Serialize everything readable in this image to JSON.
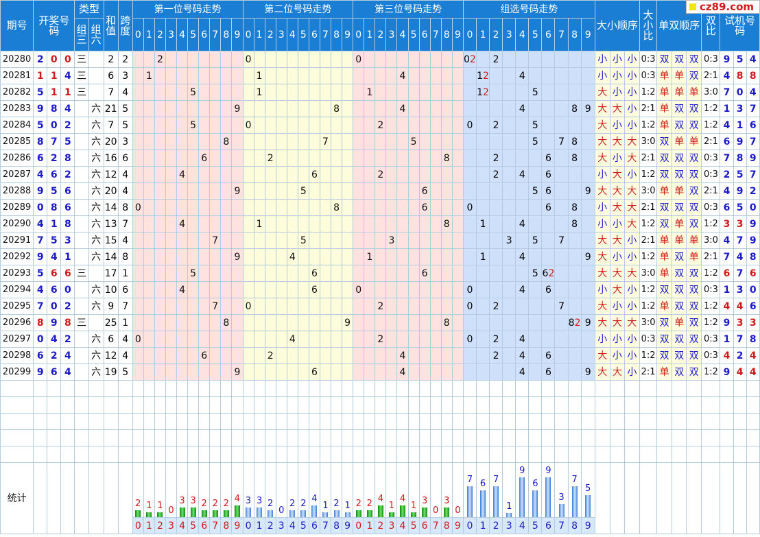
{
  "header": {
    "issue": "期号",
    "number": "开奖号码",
    "type": "类型",
    "type_sub1": "组三",
    "type_sub2": "组六",
    "sum": "和值",
    "span": "跨度",
    "pos1": "第一位号码走势",
    "pos2": "第二位号码走势",
    "pos3": "第三位号码走势",
    "group": "组选号码走势",
    "bigsmall_order": "大小顺序",
    "bigsmall_ratio": "大小比",
    "oddeven_order": "单双顺序",
    "oddeven_ratio": "双比",
    "trial": "试机号码",
    "digits": [
      "0",
      "1",
      "2",
      "3",
      "4",
      "5",
      "6",
      "7",
      "8",
      "9"
    ]
  },
  "logo": {
    "text": "cz89.com",
    "accent": "#f4e60c"
  },
  "colors": {
    "header_bg": "#1a7fd4",
    "pos_zone": "#fde2df",
    "pos2_zone": "#fdfddb",
    "group_zone": "#cfe0fb",
    "red": "#d21919",
    "blue": "#1a1acc",
    "bar_green": "#1ea01e",
    "bar_blue": "#5b9be0"
  },
  "rows": [
    {
      "issue": "20280",
      "num": [
        2,
        0,
        0
      ],
      "type": "三",
      "sum": 2,
      "span": 2,
      "bs": [
        "小",
        "小",
        "小"
      ],
      "bsr": "0:3",
      "oe": [
        "双",
        "双",
        "双"
      ],
      "oer": "0:3",
      "trial": [
        9,
        5,
        4
      ],
      "trial_red": []
    },
    {
      "issue": "20281",
      "num": [
        1,
        1,
        4
      ],
      "type": "三",
      "sum": 6,
      "span": 3,
      "bs": [
        "小",
        "小",
        "小"
      ],
      "bsr": "0:3",
      "oe": [
        "单",
        "单",
        "双"
      ],
      "oer": "2:1",
      "trial": [
        4,
        8,
        8
      ],
      "trial_red": [
        1,
        2
      ]
    },
    {
      "issue": "20282",
      "num": [
        5,
        1,
        1
      ],
      "type": "三",
      "sum": 7,
      "span": 4,
      "bs": [
        "大",
        "小",
        "小"
      ],
      "bsr": "1:2",
      "oe": [
        "单",
        "单",
        "单"
      ],
      "oer": "3:0",
      "trial": [
        7,
        0,
        4
      ],
      "trial_red": []
    },
    {
      "issue": "20283",
      "num": [
        9,
        8,
        4
      ],
      "type": "六",
      "sum": 21,
      "span": 5,
      "bs": [
        "大",
        "大",
        "小"
      ],
      "bsr": "2:1",
      "oe": [
        "单",
        "双",
        "双"
      ],
      "oer": "1:2",
      "trial": [
        1,
        3,
        7
      ],
      "trial_red": []
    },
    {
      "issue": "20284",
      "num": [
        5,
        0,
        2
      ],
      "type": "六",
      "sum": 7,
      "span": 5,
      "bs": [
        "大",
        "小",
        "小"
      ],
      "bsr": "1:2",
      "oe": [
        "单",
        "双",
        "双"
      ],
      "oer": "1:2",
      "trial": [
        4,
        1,
        6
      ],
      "trial_red": []
    },
    {
      "issue": "20285",
      "num": [
        8,
        7,
        5
      ],
      "type": "六",
      "sum": 20,
      "span": 3,
      "bs": [
        "大",
        "大",
        "大"
      ],
      "bsr": "3:0",
      "oe": [
        "双",
        "单",
        "单"
      ],
      "oer": "2:1",
      "trial": [
        6,
        9,
        7
      ],
      "trial_red": []
    },
    {
      "issue": "20286",
      "num": [
        6,
        2,
        8
      ],
      "type": "六",
      "sum": 16,
      "span": 6,
      "bs": [
        "大",
        "小",
        "大"
      ],
      "bsr": "2:1",
      "oe": [
        "双",
        "双",
        "双"
      ],
      "oer": "0:3",
      "trial": [
        7,
        8,
        9
      ],
      "trial_red": []
    },
    {
      "issue": "20287",
      "num": [
        4,
        6,
        2
      ],
      "type": "六",
      "sum": 12,
      "span": 4,
      "bs": [
        "小",
        "大",
        "小"
      ],
      "bsr": "1:2",
      "oe": [
        "双",
        "双",
        "双"
      ],
      "oer": "0:3",
      "trial": [
        2,
        5,
        7
      ],
      "trial_red": []
    },
    {
      "issue": "20288",
      "num": [
        9,
        5,
        6
      ],
      "type": "六",
      "sum": 20,
      "span": 4,
      "bs": [
        "大",
        "大",
        "大"
      ],
      "bsr": "3:0",
      "oe": [
        "单",
        "单",
        "双"
      ],
      "oer": "2:1",
      "trial": [
        4,
        9,
        2
      ],
      "trial_red": []
    },
    {
      "issue": "20289",
      "num": [
        0,
        8,
        6
      ],
      "type": "六",
      "sum": 14,
      "span": 8,
      "bs": [
        "小",
        "大",
        "大"
      ],
      "bsr": "2:1",
      "oe": [
        "双",
        "双",
        "双"
      ],
      "oer": "0:3",
      "trial": [
        6,
        5,
        0
      ],
      "trial_red": []
    },
    {
      "issue": "20290",
      "num": [
        4,
        1,
        8
      ],
      "type": "六",
      "sum": 13,
      "span": 7,
      "bs": [
        "小",
        "小",
        "大"
      ],
      "bsr": "1:2",
      "oe": [
        "双",
        "单",
        "双"
      ],
      "oer": "1:2",
      "trial": [
        3,
        3,
        9
      ],
      "trial_red": [
        0,
        1
      ]
    },
    {
      "issue": "20291",
      "num": [
        7,
        5,
        3
      ],
      "type": "六",
      "sum": 15,
      "span": 4,
      "bs": [
        "大",
        "大",
        "小"
      ],
      "bsr": "2:1",
      "oe": [
        "单",
        "单",
        "单"
      ],
      "oer": "3:0",
      "trial": [
        4,
        7,
        9
      ],
      "trial_red": []
    },
    {
      "issue": "20292",
      "num": [
        9,
        4,
        1
      ],
      "type": "六",
      "sum": 14,
      "span": 8,
      "bs": [
        "大",
        "小",
        "小"
      ],
      "bsr": "1:2",
      "oe": [
        "单",
        "双",
        "单"
      ],
      "oer": "2:1",
      "trial": [
        7,
        4,
        8
      ],
      "trial_red": []
    },
    {
      "issue": "20293",
      "num": [
        5,
        6,
        6
      ],
      "type": "三",
      "sum": 17,
      "span": 1,
      "bs": [
        "大",
        "大",
        "大"
      ],
      "bsr": "3:0",
      "oe": [
        "单",
        "双",
        "双"
      ],
      "oer": "1:2",
      "trial": [
        6,
        7,
        6
      ],
      "trial_red": [
        0,
        2
      ]
    },
    {
      "issue": "20294",
      "num": [
        4,
        6,
        0
      ],
      "type": "六",
      "sum": 10,
      "span": 6,
      "bs": [
        "小",
        "大",
        "小"
      ],
      "bsr": "1:2",
      "oe": [
        "双",
        "双",
        "双"
      ],
      "oer": "0:3",
      "trial": [
        1,
        3,
        0
      ],
      "trial_red": []
    },
    {
      "issue": "20295",
      "num": [
        7,
        0,
        2
      ],
      "type": "六",
      "sum": 9,
      "span": 7,
      "bs": [
        "大",
        "小",
        "小"
      ],
      "bsr": "1:2",
      "oe": [
        "单",
        "双",
        "双"
      ],
      "oer": "1:2",
      "trial": [
        4,
        4,
        6
      ],
      "trial_red": [
        0,
        1
      ]
    },
    {
      "issue": "20296",
      "num": [
        8,
        9,
        8
      ],
      "type": "三",
      "sum": 25,
      "span": 1,
      "bs": [
        "大",
        "大",
        "大"
      ],
      "bsr": "3:0",
      "oe": [
        "双",
        "单",
        "双"
      ],
      "oer": "1:2",
      "trial": [
        9,
        3,
        3
      ],
      "trial_red": [
        1,
        2
      ]
    },
    {
      "issue": "20297",
      "num": [
        0,
        4,
        2
      ],
      "type": "六",
      "sum": 6,
      "span": 4,
      "bs": [
        "小",
        "小",
        "小"
      ],
      "bsr": "0:3",
      "oe": [
        "双",
        "双",
        "双"
      ],
      "oer": "0:3",
      "trial": [
        1,
        7,
        8
      ],
      "trial_red": []
    },
    {
      "issue": "20298",
      "num": [
        6,
        2,
        4
      ],
      "type": "六",
      "sum": 12,
      "span": 4,
      "bs": [
        "大",
        "小",
        "小"
      ],
      "bsr": "1:2",
      "oe": [
        "双",
        "双",
        "双"
      ],
      "oer": "0:3",
      "trial": [
        4,
        2,
        4
      ],
      "trial_red": [
        0,
        2
      ]
    },
    {
      "issue": "20299",
      "num": [
        9,
        6,
        4
      ],
      "type": "六",
      "sum": 19,
      "span": 5,
      "bs": [
        "大",
        "大",
        "小"
      ],
      "bsr": "2:1",
      "oe": [
        "单",
        "双",
        "双"
      ],
      "oer": "1:2",
      "trial": [
        9,
        4,
        4
      ],
      "trial_red": [
        1,
        2
      ]
    }
  ],
  "stats": {
    "label": "统计"
  },
  "chart_data": {
    "type": "bar",
    "categories": [
      "0",
      "1",
      "2",
      "3",
      "4",
      "5",
      "6",
      "7",
      "8",
      "9"
    ],
    "series": [
      {
        "name": "第一位号码走势",
        "values": [
          2,
          1,
          1,
          0,
          3,
          3,
          2,
          2,
          2,
          4
        ]
      },
      {
        "name": "第二位号码走势",
        "values": [
          3,
          3,
          2,
          0,
          2,
          2,
          4,
          1,
          2,
          1
        ]
      },
      {
        "name": "第三位号码走势",
        "values": [
          2,
          2,
          4,
          1,
          4,
          1,
          3,
          0,
          3,
          0
        ]
      },
      {
        "name": "组选号码走势",
        "values": [
          7,
          6,
          7,
          1,
          9,
          6,
          9,
          3,
          7,
          5
        ]
      }
    ],
    "xlabel": "",
    "ylabel": "",
    "grid": true,
    "legend": "none"
  }
}
